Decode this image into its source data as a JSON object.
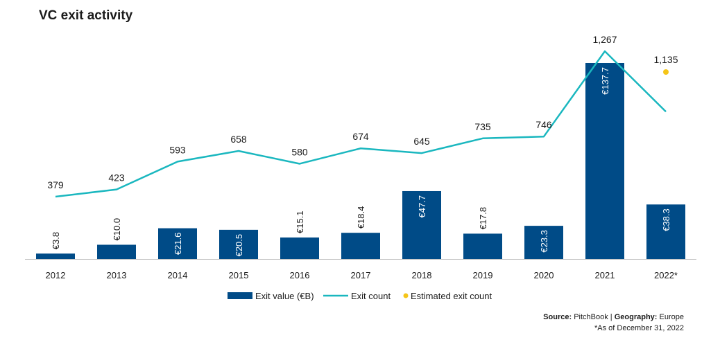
{
  "title": "VC exit activity",
  "colors": {
    "bar": "#004b87",
    "line": "#1ab7bf",
    "estimate": "#f5c518"
  },
  "chart_data": {
    "type": "bar",
    "title": "VC exit activity",
    "categories": [
      "2012",
      "2013",
      "2014",
      "2015",
      "2016",
      "2017",
      "2018",
      "2019",
      "2020",
      "2021",
      "2022*"
    ],
    "series": [
      {
        "name": "Exit value (€B)",
        "type": "bar",
        "values": [
          3.8,
          10.0,
          21.6,
          20.5,
          15.1,
          18.4,
          47.7,
          17.8,
          23.3,
          137.7,
          38.3
        ],
        "labels": [
          "€3.8",
          "€10.0",
          "€21.6",
          "€20.5",
          "€15.1",
          "€18.4",
          "€47.7",
          "€17.8",
          "€23.3",
          "€137.7",
          "€38.3"
        ]
      },
      {
        "name": "Exit count",
        "type": "line",
        "values": [
          379,
          423,
          593,
          658,
          580,
          674,
          645,
          735,
          746,
          1267,
          898
        ],
        "labels": [
          "379",
          "423",
          "593",
          "658",
          "580",
          "674",
          "645",
          "735",
          "746",
          "1,267",
          ""
        ]
      },
      {
        "name": "Estimated exit count",
        "type": "scatter",
        "category": "2022*",
        "value": 1135,
        "label": "1,135"
      }
    ],
    "legend": [
      "Exit value (€B)",
      "Exit count",
      "Estimated exit count"
    ],
    "legend_position": "bottom"
  },
  "footer": {
    "source_label": "Source:",
    "source_value": "PitchBook",
    "separator": "|",
    "geo_label": "Geography:",
    "geo_value": "Europe",
    "note": "*As of December 31, 2022"
  }
}
